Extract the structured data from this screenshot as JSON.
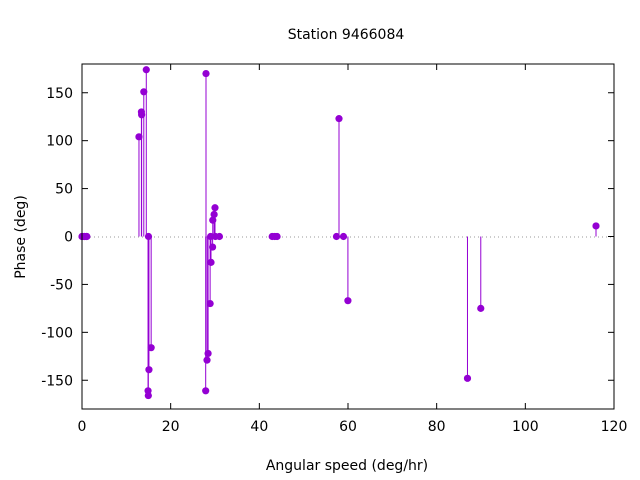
{
  "chart_data": {
    "type": "scatter",
    "style": "impulses-with-points",
    "title": "Station 9466084",
    "xlabel": "Angular speed (deg/hr)",
    "ylabel": "Phase (deg)",
    "xlim": [
      0,
      120
    ],
    "ylim": [
      -180,
      180
    ],
    "xticks": [
      0,
      20,
      40,
      60,
      80,
      100,
      120
    ],
    "yticks": [
      -150,
      -100,
      -50,
      0,
      50,
      100,
      150
    ],
    "zero_line": true,
    "color": "#9400d3",
    "series": [
      {
        "points": [
          [
            0.0,
            0
          ],
          [
            0.04,
            0
          ],
          [
            0.08,
            0
          ],
          [
            0.5,
            0
          ],
          [
            0.55,
            0
          ],
          [
            1.0,
            0
          ],
          [
            1.1,
            0
          ],
          [
            12.85,
            104
          ],
          [
            13.4,
            130
          ],
          [
            13.45,
            127
          ],
          [
            13.94,
            151
          ],
          [
            14.5,
            174
          ],
          [
            14.9,
            -161
          ],
          [
            14.96,
            -166
          ],
          [
            15.0,
            0
          ],
          [
            15.1,
            -139
          ],
          [
            15.6,
            -116
          ],
          [
            27.97,
            170
          ],
          [
            27.9,
            -161
          ],
          [
            28.2,
            -129
          ],
          [
            28.44,
            -122
          ],
          [
            28.9,
            -70
          ],
          [
            29.0,
            0
          ],
          [
            29.1,
            -27
          ],
          [
            29.46,
            -11
          ],
          [
            29.5,
            17
          ],
          [
            29.8,
            23
          ],
          [
            30.0,
            30
          ],
          [
            30.08,
            0
          ],
          [
            31.0,
            0
          ],
          [
            42.9,
            0
          ],
          [
            43.48,
            0
          ],
          [
            44.0,
            0
          ],
          [
            57.4,
            0
          ],
          [
            57.97,
            123
          ],
          [
            58.98,
            0
          ],
          [
            59.98,
            -67
          ],
          [
            86.95,
            -148
          ],
          [
            89.95,
            -75
          ],
          [
            115.94,
            11
          ]
        ]
      }
    ]
  }
}
